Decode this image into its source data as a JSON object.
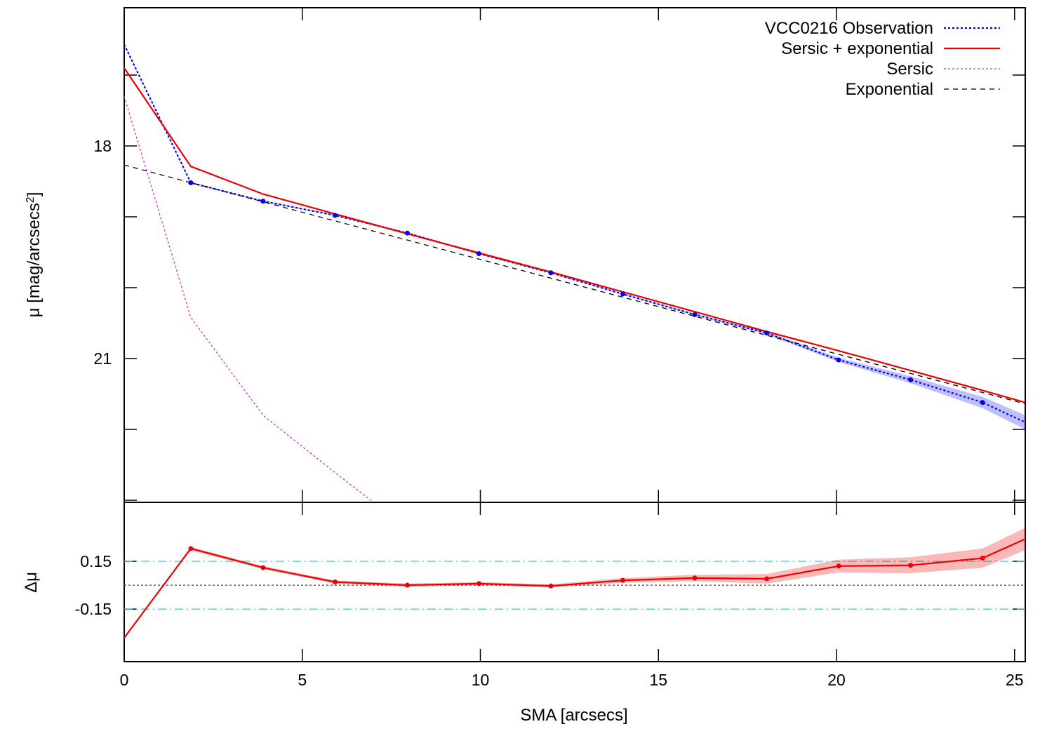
{
  "chart_data": [
    {
      "type": "line",
      "panel": "profile",
      "ylabel": "μ [mag/arcsecs²]",
      "ylabel_parts": {
        "main": "μ [mag/arcsecs",
        "sup": "2",
        "end": "]"
      },
      "xlim": [
        0,
        25.3
      ],
      "ylim": [
        16.05,
        23.03
      ],
      "y_inverted": true,
      "yticks": [
        16,
        17,
        18,
        19,
        20,
        21,
        22,
        23
      ],
      "ytick_labels": [
        {
          "value": 18,
          "label": "18"
        },
        {
          "value": 21,
          "label": "21"
        }
      ],
      "xticks": [
        0,
        5,
        10,
        15,
        20,
        25
      ],
      "legend_position": "top-right",
      "series": [
        {
          "name": "VCC0216 Observation",
          "style": "dotted",
          "color": "#0000ee",
          "markers": true,
          "x": [
            0,
            1.87,
            3.9,
            5.92,
            7.95,
            9.96,
            11.98,
            14.0,
            16.02,
            18.04,
            20.06,
            22.08,
            24.1,
            25.3
          ],
          "y": [
            16.57,
            18.52,
            18.78,
            18.98,
            19.23,
            19.52,
            19.79,
            20.09,
            20.38,
            20.64,
            21.02,
            21.3,
            21.62,
            21.9
          ],
          "band_half_width": [
            0.01,
            0.01,
            0.01,
            0.01,
            0.01,
            0.01,
            0.01,
            0.01,
            0.01,
            0.02,
            0.03,
            0.05,
            0.08,
            0.1
          ]
        },
        {
          "name": "Sersic + exponential",
          "style": "solid",
          "color": "#ee0000",
          "x": [
            0,
            1.87,
            3.9,
            5.92,
            7.95,
            9.96,
            11.98,
            14.0,
            16.02,
            18.04,
            20.06,
            22.08,
            24.1,
            25.3
          ],
          "y": [
            16.9,
            18.29,
            18.68,
            18.96,
            19.24,
            19.51,
            19.78,
            20.06,
            20.34,
            20.62,
            20.89,
            21.17,
            21.45,
            21.62
          ]
        },
        {
          "name": "Sersic",
          "style": "dotted",
          "color": "#cc33cc",
          "x": [
            0,
            1.87,
            3.9,
            5.92,
            7.0
          ],
          "y": [
            17.3,
            20.42,
            21.8,
            22.61,
            23.03
          ]
        },
        {
          "name": "Exponential",
          "style": "dashed",
          "color": "#000000",
          "x": [
            0,
            25.3
          ],
          "y": [
            18.27,
            21.64
          ]
        }
      ]
    },
    {
      "type": "line",
      "panel": "residuals",
      "ylabel": "Δμ",
      "xlabel": "SMA [arcsecs]",
      "xlim": [
        0,
        25.3
      ],
      "ylim": [
        -0.48,
        0.52
      ],
      "ytick_labels": [
        {
          "value": 0.15,
          "label": "0.15"
        },
        {
          "value": -0.15,
          "label": "-0.15"
        }
      ],
      "yticks": [
        0.15,
        -0.15
      ],
      "xticks": [
        0,
        5,
        10,
        15,
        20,
        25
      ],
      "xtick_labels": [
        "0",
        "5",
        "10",
        "15",
        "20",
        "25"
      ],
      "reference_lines": [
        {
          "value": 0.15,
          "style": "dash-dot",
          "color": "#33cccc"
        },
        {
          "value": -0.15,
          "style": "dash-dot",
          "color": "#33cccc"
        },
        {
          "value": 0,
          "style": "dotted",
          "color": "#555555"
        }
      ],
      "series": [
        {
          "name": "",
          "style": "solid",
          "color": "#ee0000",
          "markers": true,
          "x": [
            0,
            1.87,
            3.9,
            5.92,
            7.95,
            9.96,
            11.98,
            14.0,
            16.02,
            18.04,
            20.06,
            22.08,
            24.1,
            25.3
          ],
          "y": [
            -0.33,
            0.23,
            0.11,
            0.02,
            0.0,
            0.01,
            -0.005,
            0.03,
            0.045,
            0.04,
            0.12,
            0.125,
            0.17,
            0.29
          ],
          "band_half_width": [
            0.0,
            0.01,
            0.01,
            0.01,
            0.01,
            0.01,
            0.01,
            0.015,
            0.02,
            0.03,
            0.04,
            0.05,
            0.06,
            0.07
          ]
        }
      ]
    }
  ]
}
